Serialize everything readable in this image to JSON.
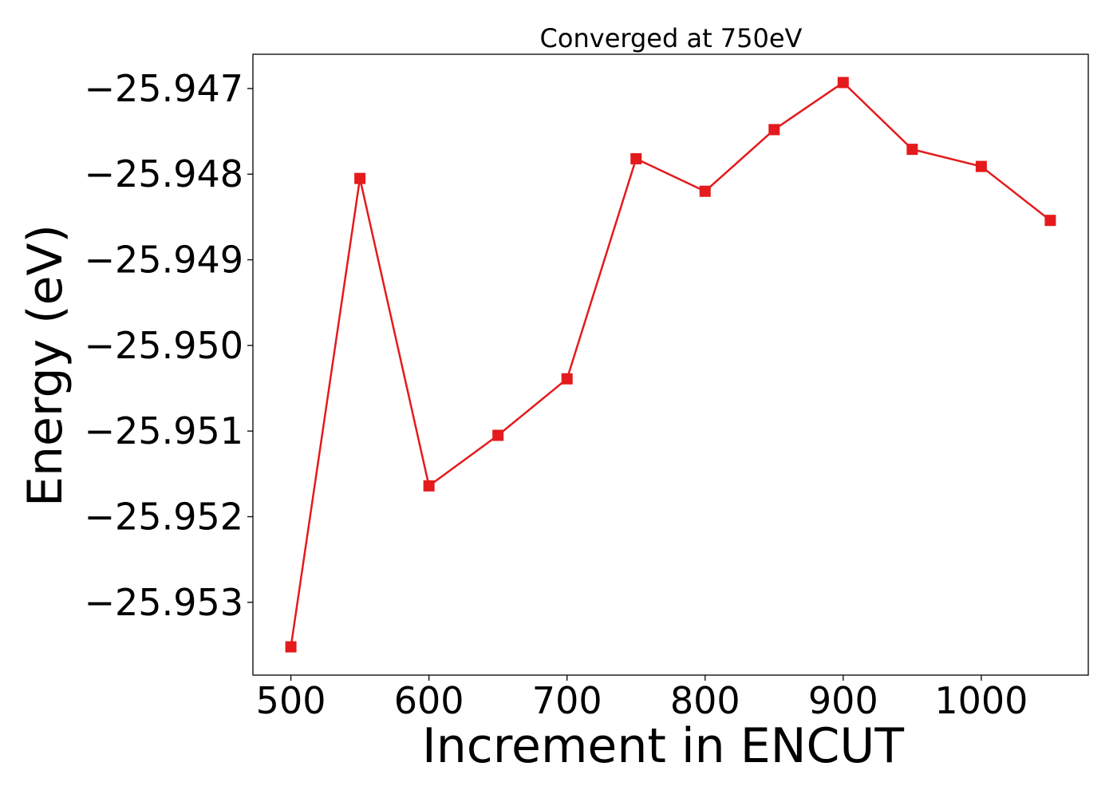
{
  "chart_data": {
    "type": "line",
    "title": "Converged at 750eV",
    "xlabel": "Increment in ENCUT",
    "ylabel": "Energy (eV)",
    "x": [
      500,
      550,
      600,
      650,
      700,
      750,
      800,
      850,
      900,
      950,
      1000,
      1050
    ],
    "series": [
      {
        "values": [
          -25.95352,
          -25.94805,
          -25.95164,
          -25.95105,
          -25.95039,
          -25.94782,
          -25.9482,
          -25.94748,
          -25.94693,
          -25.94771,
          -25.94791,
          -25.94854
        ],
        "color": "#e41a1c",
        "marker": "square"
      }
    ],
    "xticks": [
      500,
      600,
      700,
      800,
      900,
      1000
    ],
    "xtick_labels": [
      "500",
      "600",
      "700",
      "800",
      "900",
      "1000"
    ],
    "yticks": [
      -25.953,
      -25.952,
      -25.951,
      -25.95,
      -25.949,
      -25.948,
      -25.947
    ],
    "ytick_labels": [
      "−25.953",
      "−25.952",
      "−25.951",
      "−25.950",
      "−25.949",
      "−25.948",
      "−25.947"
    ],
    "xlim": [
      472.5,
      1077.5
    ],
    "ylim": [
      -25.95385,
      -25.9466
    ],
    "grid": false,
    "legend": false
  }
}
